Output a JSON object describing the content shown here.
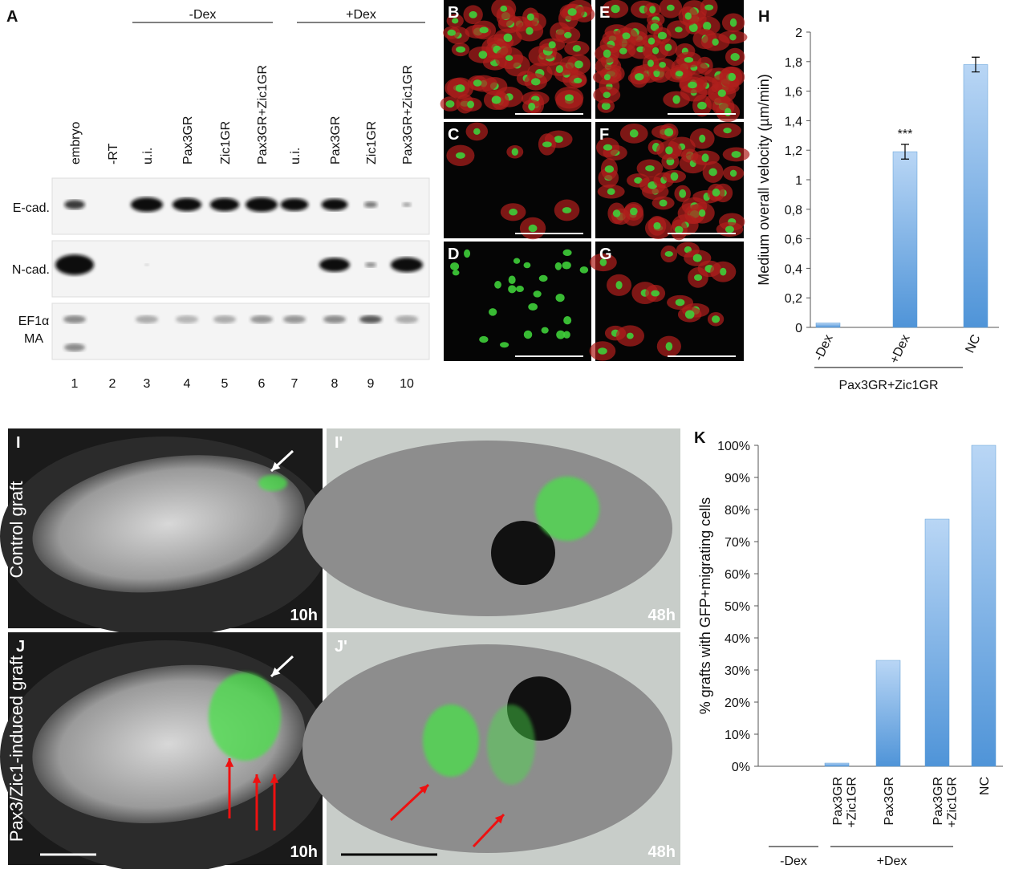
{
  "panel_a": {
    "letter": "A",
    "groups": [
      "-Dex",
      "+Dex"
    ],
    "lanes": [
      "embryo",
      "-RT",
      "u.i.",
      "Pax3GR",
      "Zic1GR",
      "Pax3GR+Zic1GR",
      "u.i.",
      "Pax3GR",
      "Zic1GR",
      "Pax3GR+Zic1GR"
    ],
    "rows": [
      "E-cad.",
      "N-cad.",
      "EF1α",
      "MA"
    ],
    "lane_numbers": [
      1,
      2,
      3,
      4,
      5,
      6,
      7,
      8,
      9,
      10
    ]
  },
  "micrographs": {
    "letters": [
      "B",
      "C",
      "D",
      "E",
      "F",
      "G"
    ]
  },
  "photos": {
    "letters": [
      "I",
      "I'",
      "J",
      "J'"
    ],
    "row_labels": [
      "Control graft",
      "Pax3/Zic1-induced graft"
    ],
    "times": [
      "10h",
      "48h",
      "10h",
      "48h"
    ]
  },
  "chart_data": [
    {
      "type": "bar",
      "letter": "H",
      "ylabel": "Medium overall velocity (µm/min)",
      "categories": [
        "-Dex",
        "+Dex",
        "NC"
      ],
      "values": [
        0.03,
        1.19,
        1.78
      ],
      "errors": [
        null,
        0.05,
        0.05
      ],
      "annotation": "***",
      "annotation_category": "+Dex",
      "group_label": "Pax3GR+Zic1GR",
      "ylim": [
        0,
        2
      ],
      "yticks": [
        0,
        {
          "value": 0.2,
          "label": "0,2"
        },
        {
          "value": 0.4,
          "label": "0,4"
        },
        {
          "value": 0.6,
          "label": "0,6"
        },
        {
          "value": 0.8,
          "label": "0,8"
        },
        1,
        {
          "value": 1.2,
          "label": "1,2"
        },
        {
          "value": 1.4,
          "label": "1,4"
        },
        {
          "value": 1.6,
          "label": "1,6"
        },
        {
          "value": 1.8,
          "label": "1,8"
        },
        2
      ],
      "color": "#5b9bd5"
    },
    {
      "type": "bar",
      "letter": "K",
      "ylabel": "% grafts with GFP+migrating cells",
      "categories": [
        "Pax3GR\n+Zic1GR",
        "Pax3GR",
        "Pax3GR\n+Zic1GR",
        "NC"
      ],
      "values": [
        1,
        33,
        77,
        100
      ],
      "groups": [
        "-Dex",
        "+Dex"
      ],
      "ylim": [
        0,
        100
      ],
      "yticks": [
        {
          "value": 0,
          "label": "0%"
        },
        {
          "value": 10,
          "label": "10%"
        },
        {
          "value": 20,
          "label": "20%"
        },
        {
          "value": 30,
          "label": "30%"
        },
        {
          "value": 40,
          "label": "40%"
        },
        {
          "value": 50,
          "label": "50%"
        },
        {
          "value": 60,
          "label": "60%"
        },
        {
          "value": 70,
          "label": "70%"
        },
        {
          "value": 80,
          "label": "80%"
        },
        {
          "value": 90,
          "label": "90%"
        },
        {
          "value": 100,
          "label": "100%"
        }
      ],
      "color": "#5b9bd5"
    }
  ]
}
